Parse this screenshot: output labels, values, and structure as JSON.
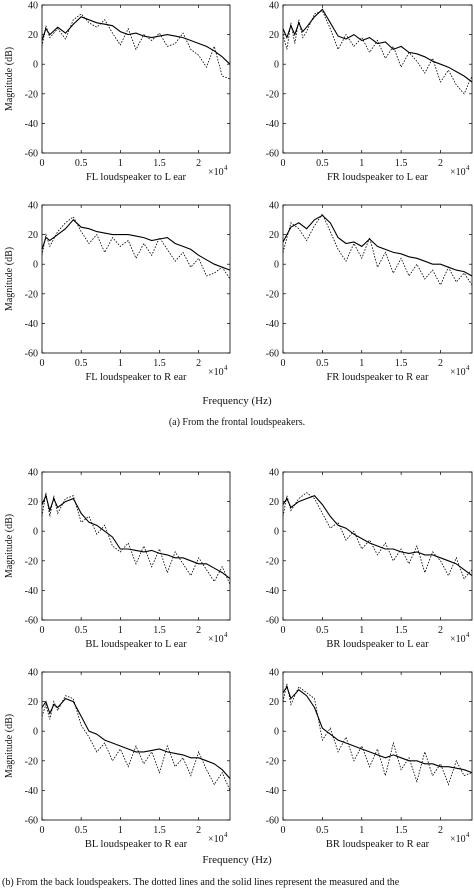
{
  "figure": {
    "group_captions": [
      "(a)  From the frontal loudspeakers.",
      "(b)  From the back loudspeakers. The dotted lines and the solid lines represent the measured and the"
    ],
    "shared_xlabel": "Frequency (Hz)",
    "x_multiplier": "×10",
    "x_multiplier_exp": "4"
  },
  "chart_data": [
    {
      "type": "line",
      "title": "",
      "xlabel": "FL loudspeaker to L ear",
      "ylabel": "Magnitude (dB)",
      "xlim": [
        0,
        24000
      ],
      "ylim": [
        -60,
        40
      ],
      "x_ticks": [
        0,
        0.5,
        1,
        1.5,
        2
      ],
      "y_ticks": [
        -60,
        -40,
        -20,
        0,
        20,
        40
      ],
      "x": [
        0,
        500,
        1000,
        2000,
        3000,
        4000,
        5000,
        6000,
        7000,
        8000,
        9000,
        10000,
        11000,
        12000,
        13000,
        14000,
        15000,
        16000,
        17000,
        18000,
        19000,
        20000,
        21000,
        22000,
        23000,
        24000
      ],
      "series": [
        {
          "name": "",
          "style": "solid",
          "values": [
            16,
            24,
            20,
            25,
            21,
            27,
            32,
            30,
            28,
            27,
            26,
            22,
            20,
            21,
            19,
            18,
            19,
            20,
            19,
            18,
            16,
            14,
            12,
            9,
            5,
            0
          ]
        },
        {
          "name": "",
          "style": "dotted",
          "values": [
            12,
            26,
            18,
            24,
            17,
            30,
            34,
            28,
            25,
            30,
            21,
            13,
            24,
            10,
            20,
            16,
            21,
            12,
            14,
            21,
            10,
            6,
            -2,
            12,
            -8,
            -10
          ]
        }
      ]
    },
    {
      "type": "line",
      "title": "",
      "xlabel": "FR loudspeaker to L ear",
      "ylabel": "",
      "xlim": [
        0,
        24000
      ],
      "ylim": [
        -60,
        40
      ],
      "x_ticks": [
        0,
        0.5,
        1,
        1.5,
        2
      ],
      "y_ticks": [
        -60,
        -40,
        -20,
        0,
        20,
        40
      ],
      "x": [
        0,
        500,
        1000,
        1500,
        2000,
        2500,
        3000,
        4000,
        5000,
        6000,
        7000,
        8000,
        9000,
        10000,
        11000,
        12000,
        13000,
        14000,
        15000,
        16000,
        17000,
        18000,
        19000,
        20000,
        21000,
        22000,
        23000,
        24000
      ],
      "series": [
        {
          "name": "",
          "style": "solid",
          "values": [
            24,
            18,
            26,
            20,
            28,
            22,
            25,
            32,
            37,
            28,
            19,
            17,
            20,
            16,
            18,
            14,
            15,
            10,
            12,
            8,
            7,
            5,
            2,
            0,
            -2,
            -5,
            -8,
            -12
          ]
        },
        {
          "name": "",
          "style": "dotted",
          "values": [
            20,
            10,
            28,
            14,
            30,
            18,
            22,
            34,
            36,
            24,
            10,
            20,
            12,
            18,
            8,
            16,
            4,
            12,
            -2,
            8,
            2,
            -6,
            4,
            -12,
            -4,
            -14,
            -20,
            -8
          ]
        }
      ]
    },
    {
      "type": "line",
      "title": "",
      "xlabel": "FL loudspeaker to R ear",
      "ylabel": "Magnitude (dB)",
      "xlim": [
        0,
        24000
      ],
      "ylim": [
        -60,
        40
      ],
      "x_ticks": [
        0,
        0.5,
        1,
        1.5,
        2
      ],
      "y_ticks": [
        -60,
        -40,
        -20,
        0,
        20,
        40
      ],
      "x": [
        0,
        500,
        1000,
        2000,
        3000,
        4000,
        5000,
        6000,
        7000,
        8000,
        9000,
        10000,
        11000,
        12000,
        13000,
        14000,
        15000,
        16000,
        17000,
        18000,
        19000,
        20000,
        21000,
        22000,
        23000,
        24000
      ],
      "series": [
        {
          "name": "",
          "style": "solid",
          "values": [
            10,
            18,
            16,
            20,
            24,
            30,
            25,
            24,
            22,
            21,
            20,
            20,
            20,
            19,
            18,
            16,
            17,
            18,
            14,
            12,
            10,
            6,
            3,
            0,
            -2,
            -4
          ]
        },
        {
          "name": "",
          "style": "dotted",
          "values": [
            6,
            20,
            12,
            22,
            28,
            32,
            22,
            14,
            20,
            8,
            18,
            12,
            16,
            4,
            14,
            6,
            18,
            10,
            2,
            8,
            -2,
            4,
            -8,
            -6,
            -2,
            -10
          ]
        }
      ]
    },
    {
      "type": "line",
      "title": "",
      "xlabel": "FR loudspeaker to R ear",
      "ylabel": "",
      "xlim": [
        0,
        24000
      ],
      "ylim": [
        -60,
        40
      ],
      "x_ticks": [
        0,
        0.5,
        1,
        1.5,
        2
      ],
      "y_ticks": [
        -60,
        -40,
        -20,
        0,
        20,
        40
      ],
      "x": [
        0,
        1000,
        2000,
        3000,
        4000,
        5000,
        6000,
        7000,
        8000,
        9000,
        10000,
        11000,
        12000,
        13000,
        14000,
        15000,
        16000,
        17000,
        18000,
        19000,
        20000,
        21000,
        22000,
        23000,
        24000
      ],
      "series": [
        {
          "name": "",
          "style": "solid",
          "values": [
            15,
            25,
            28,
            24,
            30,
            33,
            28,
            18,
            14,
            15,
            12,
            17,
            12,
            10,
            8,
            7,
            5,
            4,
            2,
            0,
            0,
            -2,
            -4,
            -5,
            -8
          ]
        },
        {
          "name": "",
          "style": "dotted",
          "values": [
            8,
            28,
            24,
            16,
            26,
            34,
            22,
            10,
            2,
            14,
            4,
            18,
            -2,
            8,
            -6,
            4,
            -8,
            0,
            -10,
            -4,
            -14,
            -2,
            -12,
            -6,
            -14
          ]
        }
      ]
    },
    {
      "type": "line",
      "title": "",
      "xlabel": "BL loudspeaker to L ear",
      "ylabel": "Magnitude (dB)",
      "xlim": [
        0,
        24000
      ],
      "ylim": [
        -60,
        40
      ],
      "x_ticks": [
        0,
        0.5,
        1,
        1.5,
        2
      ],
      "y_ticks": [
        -60,
        -40,
        -20,
        0,
        20,
        40
      ],
      "x": [
        0,
        500,
        1000,
        1500,
        2000,
        3000,
        4000,
        5000,
        6000,
        7000,
        8000,
        9000,
        10000,
        11000,
        12000,
        13000,
        14000,
        15000,
        16000,
        17000,
        18000,
        19000,
        20000,
        21000,
        22000,
        23000,
        24000
      ],
      "series": [
        {
          "name": "",
          "style": "solid",
          "values": [
            18,
            24,
            14,
            22,
            16,
            20,
            22,
            12,
            6,
            4,
            0,
            -4,
            -12,
            -12,
            -13,
            -14,
            -13,
            -15,
            -16,
            -18,
            -18,
            -20,
            -22,
            -22,
            -25,
            -28,
            -32
          ]
        },
        {
          "name": "",
          "style": "dotted",
          "values": [
            10,
            26,
            10,
            24,
            12,
            22,
            24,
            6,
            10,
            -2,
            4,
            -10,
            -14,
            -8,
            -22,
            -10,
            -24,
            -12,
            -28,
            -14,
            -22,
            -30,
            -18,
            -26,
            -34,
            -24,
            -36
          ]
        }
      ]
    },
    {
      "type": "line",
      "title": "",
      "xlabel": "BR loudspeaker to L ear",
      "ylabel": "",
      "xlim": [
        0,
        24000
      ],
      "ylim": [
        -60,
        40
      ],
      "x_ticks": [
        0,
        0.5,
        1,
        1.5,
        2
      ],
      "y_ticks": [
        -60,
        -40,
        -20,
        0,
        20,
        40
      ],
      "x": [
        0,
        500,
        1000,
        2000,
        3000,
        4000,
        5000,
        6000,
        7000,
        8000,
        9000,
        10000,
        11000,
        12000,
        13000,
        14000,
        15000,
        16000,
        17000,
        18000,
        19000,
        20000,
        21000,
        22000,
        23000,
        24000
      ],
      "series": [
        {
          "name": "",
          "style": "solid",
          "values": [
            18,
            22,
            16,
            20,
            22,
            24,
            18,
            10,
            4,
            2,
            -2,
            -5,
            -8,
            -10,
            -12,
            -12,
            -14,
            -15,
            -14,
            -16,
            -16,
            -18,
            -20,
            -22,
            -26,
            -30
          ]
        },
        {
          "name": "",
          "style": "dotted",
          "values": [
            10,
            24,
            14,
            22,
            26,
            22,
            12,
            2,
            6,
            -6,
            0,
            -12,
            -6,
            -16,
            -8,
            -20,
            -12,
            -22,
            -10,
            -28,
            -14,
            -20,
            -30,
            -18,
            -32,
            -26
          ]
        }
      ]
    },
    {
      "type": "line",
      "title": "",
      "xlabel": "BL loudspeaker to R ear",
      "ylabel": "Magnitude (dB)",
      "xlim": [
        0,
        24000
      ],
      "ylim": [
        -60,
        40
      ],
      "x_ticks": [
        0,
        0.5,
        1,
        1.5,
        2
      ],
      "y_ticks": [
        -60,
        -40,
        -20,
        0,
        20,
        40
      ],
      "x": [
        0,
        500,
        1000,
        1500,
        2000,
        3000,
        4000,
        5000,
        6000,
        7000,
        8000,
        9000,
        10000,
        11000,
        12000,
        13000,
        14000,
        15000,
        16000,
        17000,
        18000,
        19000,
        20000,
        21000,
        22000,
        23000,
        24000
      ],
      "series": [
        {
          "name": "",
          "style": "solid",
          "values": [
            16,
            20,
            12,
            18,
            16,
            22,
            20,
            10,
            0,
            -2,
            -6,
            -8,
            -10,
            -12,
            -14,
            -14,
            -13,
            -12,
            -14,
            -15,
            -16,
            -18,
            -18,
            -20,
            -22,
            -26,
            -32
          ]
        },
        {
          "name": "",
          "style": "dotted",
          "values": [
            10,
            18,
            8,
            20,
            14,
            24,
            22,
            4,
            -4,
            -14,
            -8,
            -20,
            -12,
            -24,
            -10,
            -22,
            -14,
            -28,
            -10,
            -24,
            -18,
            -30,
            -14,
            -26,
            -36,
            -28,
            -40
          ]
        }
      ]
    },
    {
      "type": "line",
      "title": "",
      "xlabel": "BR loudspeaker to R ear",
      "ylabel": "",
      "xlim": [
        0,
        24000
      ],
      "ylim": [
        -60,
        40
      ],
      "x_ticks": [
        0,
        0.5,
        1,
        1.5,
        2
      ],
      "y_ticks": [
        -60,
        -40,
        -20,
        0,
        20,
        40
      ],
      "x": [
        0,
        500,
        1000,
        2000,
        3000,
        4000,
        5000,
        6000,
        7000,
        8000,
        9000,
        10000,
        11000,
        12000,
        13000,
        14000,
        15000,
        16000,
        17000,
        18000,
        19000,
        20000,
        21000,
        22000,
        23000,
        24000
      ],
      "series": [
        {
          "name": "",
          "style": "solid",
          "values": [
            26,
            30,
            22,
            28,
            24,
            16,
            2,
            -2,
            -6,
            -8,
            -10,
            -12,
            -14,
            -16,
            -18,
            -16,
            -18,
            -20,
            -20,
            -22,
            -22,
            -24,
            -24,
            -25,
            -26,
            -28
          ]
        },
        {
          "name": "",
          "style": "dotted",
          "values": [
            20,
            32,
            18,
            30,
            26,
            22,
            -6,
            2,
            -14,
            -4,
            -20,
            -10,
            -24,
            -12,
            -30,
            -8,
            -26,
            -18,
            -34,
            -14,
            -30,
            -22,
            -36,
            -20,
            -30,
            -28
          ]
        }
      ]
    }
  ]
}
